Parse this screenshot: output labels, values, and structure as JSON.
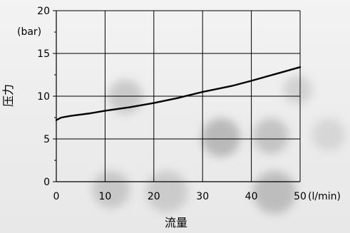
{
  "chart_data": {
    "type": "line",
    "xlabel": "流量",
    "ylabel": "压力",
    "x_unit": "(l/min)",
    "y_unit": "(bar)",
    "xlim": [
      0,
      50
    ],
    "ylim": [
      0,
      20
    ],
    "x_ticks": [
      "0",
      "10",
      "20",
      "30",
      "40",
      "50"
    ],
    "y_ticks": [
      "0",
      "5",
      "10",
      "15",
      "20"
    ],
    "grid": true,
    "series": [
      {
        "x": [
          0,
          1,
          3,
          7,
          10,
          15,
          20,
          25,
          30,
          36,
          40,
          45,
          50
        ],
        "y": [
          7.2,
          7.5,
          7.7,
          8.0,
          8.3,
          8.7,
          9.2,
          9.8,
          10.5,
          11.2,
          11.8,
          12.6,
          13.4
        ]
      }
    ]
  }
}
